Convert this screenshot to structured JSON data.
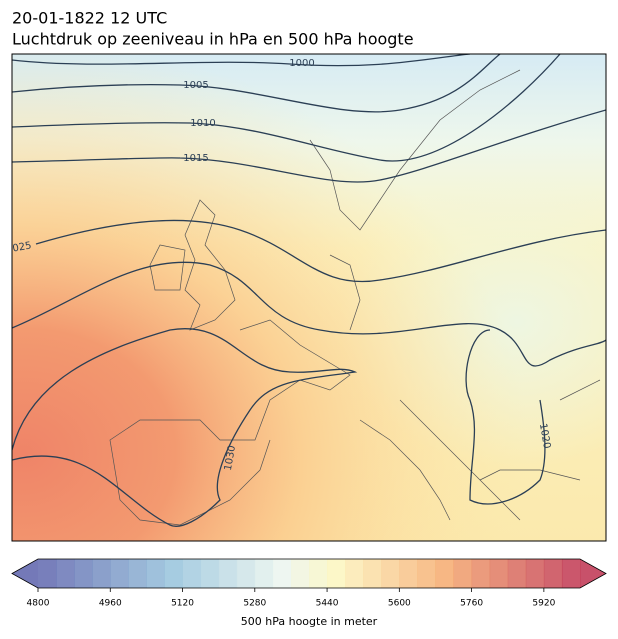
{
  "header": {
    "line1": "20-01-1822 12 UTC",
    "line2": "Luchtdruk op zeeniveau in hPa en 500 hPa hoogte"
  },
  "map": {
    "isobar_labels": [
      "1000",
      "1005",
      "1010",
      "1015",
      "025",
      "1030",
      "1020"
    ]
  },
  "colorbar": {
    "range": [
      4800,
      6000
    ],
    "ticks": [
      4800,
      4960,
      5120,
      5280,
      5440,
      5600,
      5760,
      5920
    ],
    "label": "500 hPa hoogte in meter"
  }
}
